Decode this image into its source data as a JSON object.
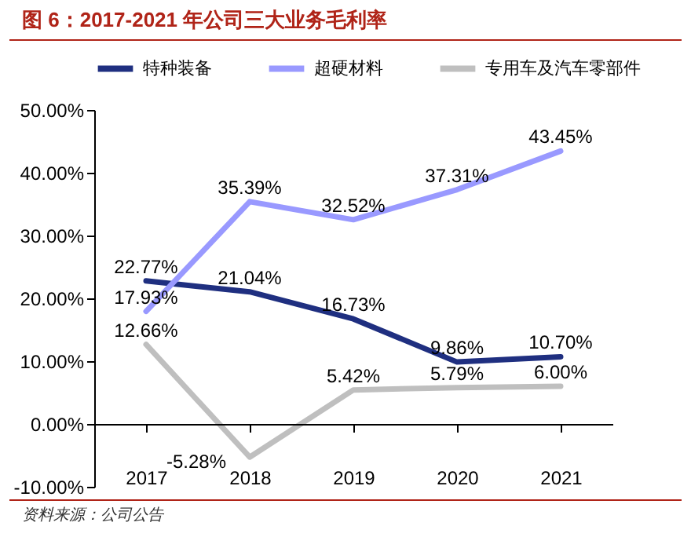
{
  "chart_data": {
    "type": "line",
    "title": "图 6：2017-2021 年公司三大业务毛利率",
    "categories": [
      "2017",
      "2018",
      "2019",
      "2020",
      "2021"
    ],
    "series": [
      {
        "name": "特种装备",
        "color": "#1f2f80",
        "values": [
          22.77,
          21.04,
          16.73,
          9.86,
          10.7
        ],
        "value_labels": [
          "22.77%",
          "21.04%",
          "16.73%",
          "9.86%",
          "10.70%"
        ]
      },
      {
        "name": "超硬材料",
        "color": "#9999ff",
        "values": [
          17.93,
          35.39,
          32.52,
          37.31,
          43.45
        ],
        "value_labels": [
          "17.93%",
          "35.39%",
          "32.52%",
          "37.31%",
          "43.45%"
        ]
      },
      {
        "name": "专用车及汽车零部件",
        "color": "#bfbfbf",
        "values": [
          12.66,
          -5.28,
          5.42,
          5.79,
          6.0
        ],
        "value_labels": [
          "12.66%",
          "-5.28%",
          "5.42%",
          "5.79%",
          "6.00%"
        ]
      }
    ],
    "ylim": [
      -10,
      50
    ],
    "yticks": [
      {
        "value": -10,
        "label": "-10.00%"
      },
      {
        "value": 0,
        "label": "0.00%"
      },
      {
        "value": 10,
        "label": "10.00%"
      },
      {
        "value": 20,
        "label": "20.00%"
      },
      {
        "value": 30,
        "label": "30.00%"
      },
      {
        "value": 40,
        "label": "40.00%"
      },
      {
        "value": 50,
        "label": "50.00%"
      }
    ],
    "legend": "top",
    "marker": "none",
    "line_style": "solid",
    "annotations": [
      "资料来源：公司公告"
    ]
  }
}
